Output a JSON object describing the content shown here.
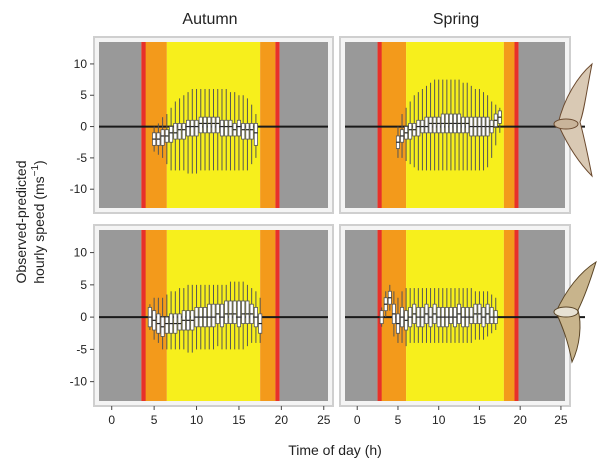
{
  "figure": {
    "ylabel_line1": "Observed-predicted",
    "ylabel_line2": "hourly speed (ms",
    "ylabel_sup": "−1",
    "ylabel_close": ")",
    "xlabel": "Time of day (h)",
    "col_titles": [
      "Autumn",
      "Spring"
    ],
    "row_icons": [
      "hawk-icon",
      "harrier-icon"
    ]
  },
  "colors": {
    "night": "#999999",
    "twilight_edge": "#e8302a",
    "twilight": "#f39a1b",
    "day": "#f7ef1c",
    "box_fill": "#ffffff",
    "zero_line": "#1a1a1a",
    "panel_border": "#cfcfcf"
  },
  "chart_data": [
    {
      "type": "boxplot",
      "panel": "top-left",
      "season": "Autumn",
      "xlim": [
        -1.5,
        25.5
      ],
      "ylim": [
        -13,
        13.5
      ],
      "xticks": [
        0,
        5,
        10,
        15,
        20,
        25
      ],
      "yticks": [
        -10,
        -5,
        0,
        5,
        10
      ],
      "bands": {
        "night_end": 3.5,
        "sunrise_red": [
          3.5,
          4.0
        ],
        "dawn_end": 6.5,
        "dusk_start": 17.5,
        "sunset_red": [
          19.3,
          19.8
        ]
      },
      "hours": [
        5,
        5.5,
        6,
        6.5,
        7,
        7.5,
        8,
        8.5,
        9,
        9.5,
        10,
        10.5,
        11,
        11.5,
        12,
        12.5,
        13,
        13.5,
        14,
        14.5,
        15,
        15.5,
        16,
        16.5,
        17
      ],
      "medians": [
        -2,
        -2,
        -1.5,
        -1.5,
        -1,
        -1,
        -0.5,
        -0.5,
        0,
        0,
        0,
        0.5,
        0.5,
        0.5,
        0.5,
        0.5,
        0,
        0,
        0,
        -0.5,
        0,
        -0.5,
        -0.5,
        -0.5,
        -1
      ],
      "q1": [
        -3,
        -3,
        -3,
        -2.5,
        -2.5,
        -2,
        -2,
        -2,
        -1.5,
        -1.5,
        -1.5,
        -1,
        -1,
        -1,
        -1,
        -1,
        -1.5,
        -1.5,
        -1.5,
        -1.5,
        -1.5,
        -2,
        -2,
        -2,
        -3
      ],
      "q3": [
        -1,
        -1,
        -0.5,
        -0.5,
        0,
        0.5,
        0.5,
        0.5,
        1,
        1,
        1,
        1.5,
        1.5,
        1.5,
        1.5,
        1.5,
        1,
        1,
        1,
        0.5,
        1,
        0.5,
        0.5,
        0.5,
        0.5
      ],
      "whisk_lo": [
        -4,
        -4.5,
        -5,
        -6,
        -7,
        -7,
        -7,
        -7,
        -7.5,
        -7.5,
        -7.5,
        -7,
        -7,
        -7,
        -7,
        -7,
        -7,
        -7,
        -7,
        -7,
        -7,
        -7,
        -7,
        -6,
        -5
      ],
      "whisk_hi": [
        0,
        0.5,
        1.5,
        2,
        3,
        4,
        4.5,
        5,
        5.5,
        6,
        6,
        6,
        6,
        6,
        6,
        6,
        6,
        6,
        5.5,
        5.5,
        5,
        5,
        4.5,
        3.5,
        2
      ]
    },
    {
      "type": "boxplot",
      "panel": "top-right",
      "season": "Spring",
      "xlim": [
        -1.5,
        25.5
      ],
      "ylim": [
        -13,
        13.5
      ],
      "xticks": [
        0,
        5,
        10,
        15,
        20,
        25
      ],
      "yticks": [
        -10,
        -5,
        0,
        5,
        10
      ],
      "bands": {
        "night_end": 2.5,
        "sunrise_red": [
          2.5,
          3.0
        ],
        "dawn_end": 6.0,
        "dusk_start": 18.0,
        "sunset_red": [
          19.3,
          19.8
        ]
      },
      "hours": [
        5,
        5.5,
        6,
        6.5,
        7,
        7.5,
        8,
        8.5,
        9,
        9.5,
        10,
        10.5,
        11,
        11.5,
        12,
        12.5,
        13,
        13.5,
        14,
        14.5,
        15,
        15.5,
        16,
        16.5,
        17,
        17.5
      ],
      "medians": [
        -2.5,
        -1.5,
        -1,
        -0.5,
        -0.5,
        0,
        0,
        0,
        0.5,
        0.5,
        0.5,
        0.5,
        0.5,
        0.5,
        0.5,
        0.5,
        0.5,
        0.5,
        0,
        0,
        0,
        0,
        0,
        0,
        1,
        1.5
      ],
      "q1": [
        -3.5,
        -2.5,
        -2,
        -2,
        -1.5,
        -1.5,
        -1,
        -1,
        -1,
        -1,
        -1,
        -1,
        -1,
        -1,
        -1,
        -1,
        -1,
        -1,
        -1.5,
        -1.5,
        -1.5,
        -1.5,
        -1.5,
        -1,
        0,
        0.5
      ],
      "q3": [
        -1.5,
        -0.5,
        0,
        0.5,
        0.5,
        1,
        1,
        1.5,
        1.5,
        1.5,
        1.5,
        2,
        2,
        2,
        2,
        2,
        1.5,
        1.5,
        1.5,
        1.5,
        1.5,
        1.5,
        1.5,
        1,
        2,
        2.5
      ],
      "whisk_lo": [
        -5,
        -5,
        -5.5,
        -6,
        -6.5,
        -7,
        -7,
        -7,
        -7,
        -7,
        -7,
        -7,
        -7,
        -7,
        -7,
        -7,
        -7,
        -7,
        -7,
        -7,
        -7,
        -7,
        -6.5,
        -5,
        -3,
        -1
      ],
      "whisk_hi": [
        0,
        2,
        3,
        4,
        5,
        5.5,
        6,
        6.5,
        7,
        7.5,
        7.5,
        7.5,
        7.5,
        7.5,
        7.5,
        7.5,
        7,
        7,
        6.5,
        6,
        6,
        5.5,
        5,
        4,
        3.5,
        3
      ]
    },
    {
      "type": "boxplot",
      "panel": "bottom-left",
      "season": "Autumn",
      "xlim": [
        -1.5,
        25.5
      ],
      "ylim": [
        -13,
        13.5
      ],
      "xticks": [
        0,
        5,
        10,
        15,
        20,
        25
      ],
      "yticks": [
        -10,
        -5,
        0,
        5,
        10
      ],
      "bands": {
        "night_end": 3.5,
        "sunrise_red": [
          3.5,
          4.0
        ],
        "dawn_end": 6.5,
        "dusk_start": 17.5,
        "sunset_red": [
          19.3,
          19.8
        ]
      },
      "hours": [
        4.5,
        5,
        5.5,
        6,
        6.5,
        7,
        7.5,
        8,
        8.5,
        9,
        9.5,
        10,
        10.5,
        11,
        11.5,
        12,
        12.5,
        13,
        13.5,
        14,
        14.5,
        15,
        15.5,
        16,
        16.5,
        17,
        17.5
      ],
      "medians": [
        0,
        -0.5,
        -1,
        -1.5,
        -1,
        -1,
        -1,
        -1,
        -0.5,
        -0.5,
        -0.5,
        0,
        0,
        0,
        0,
        0,
        0.5,
        0,
        0.5,
        0.5,
        0.5,
        0,
        0.5,
        0.5,
        0.5,
        0,
        -1
      ],
      "q1": [
        -1.5,
        -2,
        -2.5,
        -3,
        -2.5,
        -2.5,
        -2.5,
        -2,
        -2,
        -2,
        -2,
        -1.5,
        -1.5,
        -1.5,
        -1.5,
        -1.5,
        -1,
        -1.5,
        -1,
        -1,
        -1,
        -1.5,
        -1,
        -1,
        -1,
        -1.5,
        -2.5
      ],
      "q3": [
        1.5,
        1,
        0.5,
        0,
        0,
        0.5,
        0.5,
        0.5,
        1,
        1,
        1,
        1.5,
        1.5,
        1.5,
        2,
        2,
        2,
        2,
        2.5,
        2.5,
        2.5,
        2.5,
        2.5,
        2.5,
        2,
        1.5,
        0.5
      ],
      "whisk_lo": [
        -2,
        -3.5,
        -4,
        -5,
        -5,
        -5,
        -5,
        -5,
        -5,
        -5.5,
        -5.5,
        -5,
        -5,
        -5,
        -5,
        -5,
        -4.5,
        -5,
        -5,
        -5,
        -5,
        -5,
        -5,
        -4.5,
        -4,
        -4,
        -4
      ],
      "whisk_hi": [
        2,
        3,
        3,
        3,
        3.5,
        4,
        4,
        4.5,
        4.5,
        5,
        5,
        5,
        5,
        5,
        5,
        5,
        5,
        5,
        5,
        5.5,
        5.5,
        5.5,
        5.5,
        5,
        4.5,
        4,
        3
      ]
    },
    {
      "type": "boxplot",
      "panel": "bottom-right",
      "season": "Spring",
      "xlim": [
        -1.5,
        25.5
      ],
      "ylim": [
        -13,
        13.5
      ],
      "xticks": [
        0,
        5,
        10,
        15,
        20,
        25
      ],
      "yticks": [
        -10,
        -5,
        0,
        5,
        10
      ],
      "bands": {
        "night_end": 2.5,
        "sunrise_red": [
          2.5,
          3.0
        ],
        "dawn_end": 6.0,
        "dusk_start": 18.0,
        "sunset_red": [
          19.3,
          19.8
        ]
      },
      "hours": [
        3,
        3.5,
        4,
        4.5,
        5,
        5.5,
        6,
        6.5,
        7,
        7.5,
        8,
        8.5,
        9,
        9.5,
        10,
        10.5,
        11,
        11.5,
        12,
        12.5,
        13,
        13.5,
        14,
        14.5,
        15,
        15.5,
        16,
        16.5,
        17
      ],
      "medians": [
        0,
        2,
        3,
        0.5,
        -1,
        0,
        -0.5,
        0,
        0.5,
        0,
        0,
        0.5,
        0,
        0.5,
        0,
        0,
        0,
        0,
        0,
        0.5,
        0,
        0,
        0,
        0.5,
        0.5,
        0,
        0.5,
        0,
        0
      ],
      "q1": [
        -1,
        1,
        2,
        -1,
        -2.5,
        -1.5,
        -2,
        -1.5,
        -1,
        -1.5,
        -1.5,
        -1,
        -1.5,
        -1,
        -1.5,
        -1.5,
        -1.5,
        -1,
        -1.5,
        -1,
        -1.5,
        -1.5,
        -1,
        -1,
        -1,
        -1.5,
        -1,
        -1,
        -1
      ],
      "q3": [
        1,
        3,
        4,
        2,
        0.5,
        1.5,
        1,
        1.5,
        2,
        1.5,
        1.5,
        2,
        1.5,
        2,
        1.5,
        1.5,
        1.5,
        1.5,
        1.5,
        2,
        1.5,
        1.5,
        1.5,
        2,
        2,
        1.5,
        2,
        1.5,
        1
      ],
      "whisk_lo": [
        -1.5,
        0,
        1,
        -3,
        -4,
        -4,
        -4.5,
        -4,
        -4,
        -4,
        -4,
        -4,
        -4,
        -4,
        -4,
        -4,
        -4,
        -4,
        -4,
        -4,
        -4,
        -4,
        -4,
        -3.5,
        -3.5,
        -3.5,
        -3,
        -2.5,
        -2
      ],
      "whisk_hi": [
        1.5,
        4,
        5,
        4,
        3,
        4,
        4.5,
        4.5,
        4.5,
        4.5,
        4.5,
        4.5,
        4.5,
        4.5,
        4.5,
        4.5,
        4.5,
        4.5,
        4.5,
        4.5,
        4.5,
        4.5,
        4.5,
        4,
        4,
        4,
        4,
        3.5,
        3
      ]
    }
  ]
}
